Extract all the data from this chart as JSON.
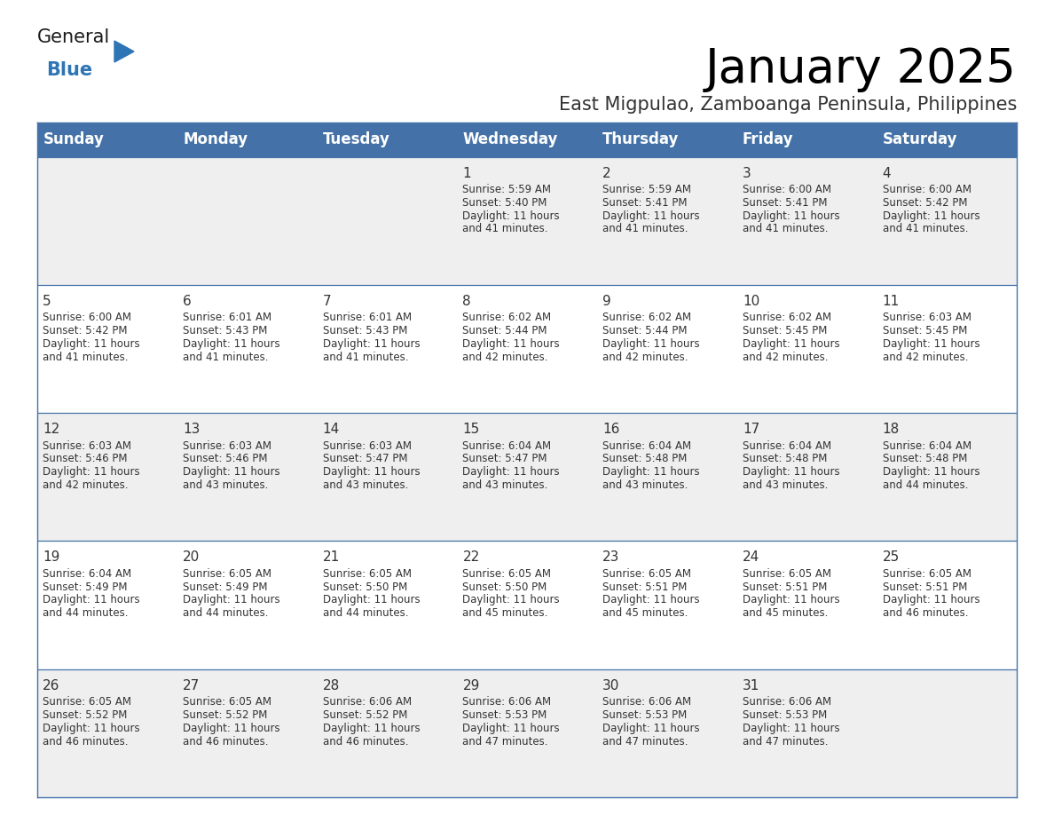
{
  "title": "January 2025",
  "subtitle": "East Migpulao, Zamboanga Peninsula, Philippines",
  "header_bg_color": "#4472A8",
  "header_text_color": "#FFFFFF",
  "row_bg_even": "#FFFFFF",
  "row_bg_odd": "#EFEFEF",
  "border_color": "#4472A8",
  "text_color": "#333333",
  "day_names": [
    "Sunday",
    "Monday",
    "Tuesday",
    "Wednesday",
    "Thursday",
    "Friday",
    "Saturday"
  ],
  "calendar": [
    [
      {
        "day": "",
        "sunrise": "",
        "sunset": "",
        "daylight_h": "",
        "daylight_m": ""
      },
      {
        "day": "",
        "sunrise": "",
        "sunset": "",
        "daylight_h": "",
        "daylight_m": ""
      },
      {
        "day": "",
        "sunrise": "",
        "sunset": "",
        "daylight_h": "",
        "daylight_m": ""
      },
      {
        "day": "1",
        "sunrise": "5:59 AM",
        "sunset": "5:40 PM",
        "daylight_h": "11",
        "daylight_m": "41"
      },
      {
        "day": "2",
        "sunrise": "5:59 AM",
        "sunset": "5:41 PM",
        "daylight_h": "11",
        "daylight_m": "41"
      },
      {
        "day": "3",
        "sunrise": "6:00 AM",
        "sunset": "5:41 PM",
        "daylight_h": "11",
        "daylight_m": "41"
      },
      {
        "day": "4",
        "sunrise": "6:00 AM",
        "sunset": "5:42 PM",
        "daylight_h": "11",
        "daylight_m": "41"
      }
    ],
    [
      {
        "day": "5",
        "sunrise": "6:00 AM",
        "sunset": "5:42 PM",
        "daylight_h": "11",
        "daylight_m": "41"
      },
      {
        "day": "6",
        "sunrise": "6:01 AM",
        "sunset": "5:43 PM",
        "daylight_h": "11",
        "daylight_m": "41"
      },
      {
        "day": "7",
        "sunrise": "6:01 AM",
        "sunset": "5:43 PM",
        "daylight_h": "11",
        "daylight_m": "41"
      },
      {
        "day": "8",
        "sunrise": "6:02 AM",
        "sunset": "5:44 PM",
        "daylight_h": "11",
        "daylight_m": "42"
      },
      {
        "day": "9",
        "sunrise": "6:02 AM",
        "sunset": "5:44 PM",
        "daylight_h": "11",
        "daylight_m": "42"
      },
      {
        "day": "10",
        "sunrise": "6:02 AM",
        "sunset": "5:45 PM",
        "daylight_h": "11",
        "daylight_m": "42"
      },
      {
        "day": "11",
        "sunrise": "6:03 AM",
        "sunset": "5:45 PM",
        "daylight_h": "11",
        "daylight_m": "42"
      }
    ],
    [
      {
        "day": "12",
        "sunrise": "6:03 AM",
        "sunset": "5:46 PM",
        "daylight_h": "11",
        "daylight_m": "42"
      },
      {
        "day": "13",
        "sunrise": "6:03 AM",
        "sunset": "5:46 PM",
        "daylight_h": "11",
        "daylight_m": "43"
      },
      {
        "day": "14",
        "sunrise": "6:03 AM",
        "sunset": "5:47 PM",
        "daylight_h": "11",
        "daylight_m": "43"
      },
      {
        "day": "15",
        "sunrise": "6:04 AM",
        "sunset": "5:47 PM",
        "daylight_h": "11",
        "daylight_m": "43"
      },
      {
        "day": "16",
        "sunrise": "6:04 AM",
        "sunset": "5:48 PM",
        "daylight_h": "11",
        "daylight_m": "43"
      },
      {
        "day": "17",
        "sunrise": "6:04 AM",
        "sunset": "5:48 PM",
        "daylight_h": "11",
        "daylight_m": "43"
      },
      {
        "day": "18",
        "sunrise": "6:04 AM",
        "sunset": "5:48 PM",
        "daylight_h": "11",
        "daylight_m": "44"
      }
    ],
    [
      {
        "day": "19",
        "sunrise": "6:04 AM",
        "sunset": "5:49 PM",
        "daylight_h": "11",
        "daylight_m": "44"
      },
      {
        "day": "20",
        "sunrise": "6:05 AM",
        "sunset": "5:49 PM",
        "daylight_h": "11",
        "daylight_m": "44"
      },
      {
        "day": "21",
        "sunrise": "6:05 AM",
        "sunset": "5:50 PM",
        "daylight_h": "11",
        "daylight_m": "44"
      },
      {
        "day": "22",
        "sunrise": "6:05 AM",
        "sunset": "5:50 PM",
        "daylight_h": "11",
        "daylight_m": "45"
      },
      {
        "day": "23",
        "sunrise": "6:05 AM",
        "sunset": "5:51 PM",
        "daylight_h": "11",
        "daylight_m": "45"
      },
      {
        "day": "24",
        "sunrise": "6:05 AM",
        "sunset": "5:51 PM",
        "daylight_h": "11",
        "daylight_m": "45"
      },
      {
        "day": "25",
        "sunrise": "6:05 AM",
        "sunset": "5:51 PM",
        "daylight_h": "11",
        "daylight_m": "46"
      }
    ],
    [
      {
        "day": "26",
        "sunrise": "6:05 AM",
        "sunset": "5:52 PM",
        "daylight_h": "11",
        "daylight_m": "46"
      },
      {
        "day": "27",
        "sunrise": "6:05 AM",
        "sunset": "5:52 PM",
        "daylight_h": "11",
        "daylight_m": "46"
      },
      {
        "day": "28",
        "sunrise": "6:06 AM",
        "sunset": "5:52 PM",
        "daylight_h": "11",
        "daylight_m": "46"
      },
      {
        "day": "29",
        "sunrise": "6:06 AM",
        "sunset": "5:53 PM",
        "daylight_h": "11",
        "daylight_m": "47"
      },
      {
        "day": "30",
        "sunrise": "6:06 AM",
        "sunset": "5:53 PM",
        "daylight_h": "11",
        "daylight_m": "47"
      },
      {
        "day": "31",
        "sunrise": "6:06 AM",
        "sunset": "5:53 PM",
        "daylight_h": "11",
        "daylight_m": "47"
      },
      {
        "day": "",
        "sunrise": "",
        "sunset": "",
        "daylight_h": "",
        "daylight_m": ""
      }
    ]
  ],
  "title_fontsize": 38,
  "subtitle_fontsize": 15,
  "header_fontsize": 12,
  "day_num_fontsize": 11,
  "cell_text_fontsize": 8.5,
  "logo_general_fontsize": 15,
  "logo_blue_fontsize": 15,
  "logo_color1": "#1a1a1a",
  "logo_color2": "#2E75B6",
  "logo_triangle_color": "#2E75B6"
}
